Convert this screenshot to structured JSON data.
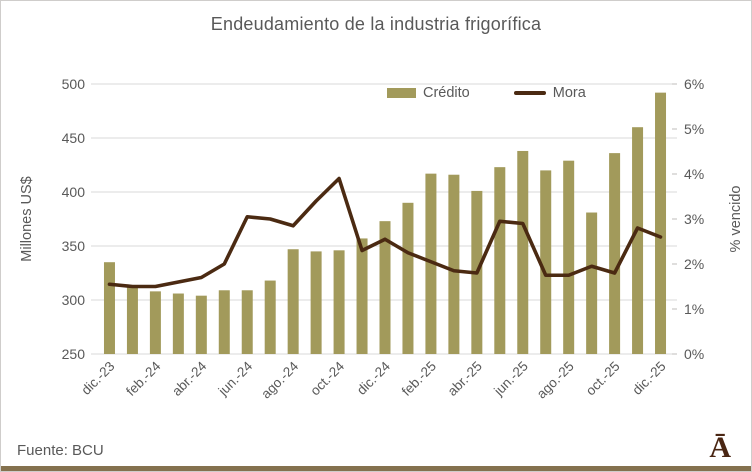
{
  "title": "Endeudamiento de la industria frigorífica",
  "source": "Fuente: BCU",
  "logo": "Ā",
  "colors": {
    "bar": "#a29a5b",
    "line": "#4b2a12",
    "grid": "#d9d9d9",
    "text": "#595959",
    "logo_brown": "#4a2613",
    "bottom_strip": "#84714e"
  },
  "legend": [
    {
      "label": "Crédito",
      "type": "bar"
    },
    {
      "label": "Mora",
      "type": "line"
    }
  ],
  "left_axis": {
    "title": "Millones US$",
    "min": 250,
    "max": 500,
    "step": 50,
    "ticks": [
      "250",
      "300",
      "350",
      "400",
      "450",
      "500"
    ]
  },
  "right_axis": {
    "title": "% vencido",
    "min": 0,
    "max": 6,
    "step": 1,
    "ticks": [
      "0%",
      "1%",
      "2%",
      "3%",
      "4%",
      "5%",
      "6%"
    ]
  },
  "x_axis": {
    "tick_every": 2,
    "labels": [
      "dic.-23",
      "feb.-24",
      "abr.-24",
      "jun.-24",
      "ago.-24",
      "oct.-24",
      "dic.-24",
      "feb.-25",
      "abr.-25",
      "jun.-25",
      "ago.-25",
      "oct.-25",
      "dic.-25"
    ]
  },
  "chart_data": {
    "type": "combo",
    "title": "Endeudamiento de la industria frigorífica",
    "grid": "horizontal",
    "legend_position": "top",
    "categories": [
      "dic.-23",
      "ene.-24",
      "feb.-24",
      "mar.-24",
      "abr.-24",
      "may.-24",
      "jun.-24",
      "jul.-24",
      "ago.-24",
      "sep.-24",
      "oct.-24",
      "nov.-24",
      "dic.-24",
      "ene.-25",
      "feb.-25",
      "mar.-25",
      "abr.-25",
      "may.-25",
      "jun.-25",
      "jul.-25",
      "ago.-25",
      "sep.-25",
      "oct.-25",
      "nov.-25",
      "dic.-25"
    ],
    "series": [
      {
        "name": "Crédito",
        "type": "bar",
        "axis": "left",
        "unit": "Millones US$",
        "ylim": [
          250,
          500
        ],
        "values": [
          335,
          312,
          308,
          306,
          304,
          309,
          309,
          318,
          347,
          345,
          346,
          357,
          373,
          390,
          417,
          416,
          401,
          423,
          438,
          420,
          429,
          381,
          436,
          460,
          492
        ]
      },
      {
        "name": "Mora",
        "type": "line",
        "axis": "right",
        "unit": "% vencido",
        "ylim": [
          0,
          6
        ],
        "values": [
          1.55,
          1.5,
          1.5,
          1.6,
          1.7,
          2.0,
          3.05,
          3.0,
          2.85,
          3.4,
          3.9,
          2.3,
          2.55,
          2.25,
          2.05,
          1.85,
          1.8,
          2.95,
          2.9,
          1.75,
          1.75,
          1.95,
          1.8,
          2.8,
          2.6
        ]
      }
    ]
  }
}
